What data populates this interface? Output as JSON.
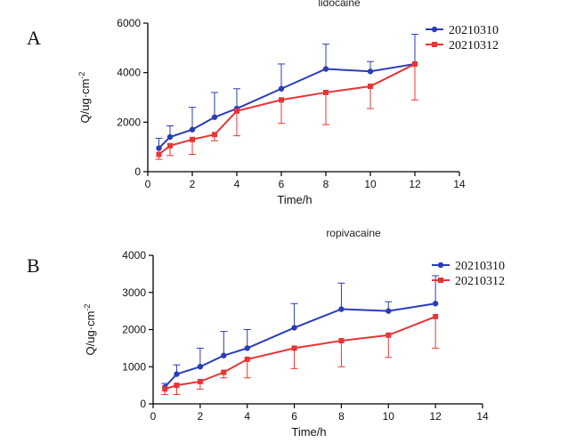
{
  "panels": {
    "a_label": "A",
    "b_label": "B"
  },
  "chart_data": [
    {
      "type": "line",
      "title": "lidocaine",
      "xlabel": "Time/h",
      "ylabel": "Q/ug·cm",
      "ylabel_sup": "-2",
      "xlim": [
        0,
        14
      ],
      "ylim": [
        0,
        6000
      ],
      "xticks": [
        0,
        2,
        4,
        6,
        8,
        10,
        12,
        14
      ],
      "yticks": [
        0,
        2000,
        4000,
        6000
      ],
      "x": [
        0.5,
        1,
        2,
        3,
        4,
        6,
        8,
        10,
        12
      ],
      "series": [
        {
          "name": "20210310",
          "color": "#2a3db8",
          "marker": "circle",
          "values": [
            950,
            1400,
            1700,
            2200,
            2550,
            3350,
            4150,
            4050,
            4350
          ],
          "error_up": [
            400,
            450,
            900,
            1000,
            800,
            1000,
            1000,
            400,
            1200
          ]
        },
        {
          "name": "20210312",
          "color": "#e83434",
          "marker": "square",
          "values": [
            700,
            1050,
            1300,
            1500,
            2450,
            2900,
            3200,
            3450,
            4350
          ],
          "error_down": [
            200,
            400,
            600,
            250,
            1000,
            950,
            1300,
            900,
            1450
          ]
        }
      ],
      "legend": "top-right"
    },
    {
      "type": "line",
      "title": "ropivacaine",
      "xlabel": "Time/h",
      "ylabel": "Q/ug·cm",
      "ylabel_sup": "-2",
      "xlim": [
        0,
        14
      ],
      "ylim": [
        0,
        4000
      ],
      "xticks": [
        0,
        2,
        4,
        6,
        8,
        10,
        12,
        14
      ],
      "yticks": [
        0,
        1000,
        2000,
        3000,
        4000
      ],
      "x": [
        0.5,
        1,
        2,
        3,
        4,
        6,
        8,
        10,
        12
      ],
      "series": [
        {
          "name": "20210310",
          "color": "#2a3db8",
          "marker": "circle",
          "values": [
            450,
            800,
            1000,
            1300,
            1500,
            2050,
            2550,
            2500,
            2700
          ],
          "error_up": [
            100,
            250,
            500,
            650,
            500,
            650,
            700,
            250,
            750
          ]
        },
        {
          "name": "20210312",
          "color": "#e83434",
          "marker": "square",
          "values": [
            400,
            500,
            600,
            850,
            1200,
            1500,
            1700,
            1850,
            2350
          ],
          "error_down": [
            150,
            250,
            200,
            150,
            500,
            550,
            700,
            600,
            850
          ]
        }
      ],
      "legend": "top-right"
    }
  ]
}
